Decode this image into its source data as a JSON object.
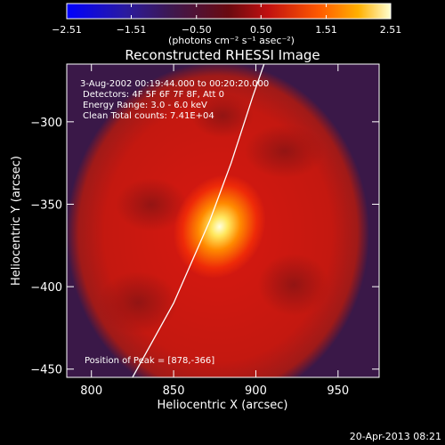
{
  "chart_data": {
    "type": "heatmap",
    "title": "Reconstructed RHESSI Image",
    "xlabel": "Heliocentric X (arcsec)",
    "ylabel": "Heliocentric Y (arcsec)",
    "xlim": [
      785,
      975
    ],
    "ylim": [
      -455,
      -265
    ],
    "x_ticks": [
      800,
      850,
      900,
      950
    ],
    "y_ticks": [
      -300,
      -350,
      -400,
      -450
    ],
    "x_tick_labels": [
      "800",
      "850",
      "900",
      "950"
    ],
    "y_tick_labels": [
      "−300",
      "−350",
      "−400",
      "−450"
    ],
    "colorbar": {
      "min": -2.51,
      "max": 2.51,
      "ticks": [
        -2.51,
        -1.51,
        -0.5,
        0.5,
        1.51,
        2.51
      ],
      "tick_labels": [
        "−2.51",
        "−1.51",
        "−0.50",
        "0.50",
        "1.51",
        "2.51"
      ],
      "label": "(photons cm⁻² s⁻¹ asec⁻²)"
    },
    "annotations": [
      "3-Aug-2002 00:19:44.000 to 00:20:20.000",
      "Detectors: 4F 5F 6F 7F 8F, Att 0",
      "Energy Range: 3.0 - 6.0 keV",
      "Clean     Total counts: 7.41E+04"
    ],
    "peak_label": "Position of Peak = [878,-366]",
    "peak": [
      878,
      -366
    ],
    "limb_curve": [
      [
        825,
        -455
      ],
      [
        850,
        -410
      ],
      [
        872,
        -360
      ],
      [
        885,
        -325
      ],
      [
        898,
        -285
      ],
      [
        905,
        -265
      ]
    ],
    "timestamp": "20-Apr-2013 08:21"
  }
}
